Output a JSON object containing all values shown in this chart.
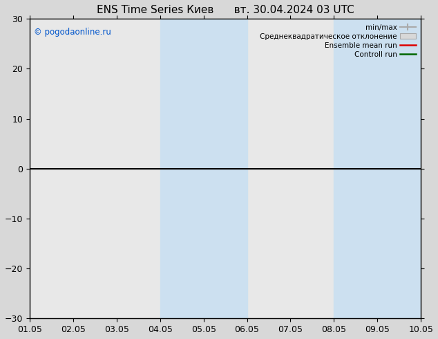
{
  "title": "ENS Time Series Киев",
  "title2": "вт. 30.04.2024 03 UTC",
  "ylim": [
    -30,
    30
  ],
  "yticks": [
    -30,
    -20,
    -10,
    0,
    10,
    20,
    30
  ],
  "xtick_labels": [
    "01.05",
    "02.05",
    "03.05",
    "04.05",
    "05.05",
    "06.05",
    "07.05",
    "08.05",
    "09.05",
    "10.05"
  ],
  "background_color": "#d8d8d8",
  "plot_bg_color": "#e8e8e8",
  "shaded_regions": [
    {
      "xstart": 3,
      "xend": 4,
      "color": "#cce0f0"
    },
    {
      "xstart": 4,
      "xend": 5,
      "color": "#cce0f0"
    },
    {
      "xstart": 7,
      "xend": 8,
      "color": "#cce0f0"
    },
    {
      "xstart": 8,
      "xend": 9,
      "color": "#cce0f0"
    }
  ],
  "zero_line_y": 0,
  "watermark": "© pogodaonline.ru",
  "watermark_color": "#0055cc",
  "legend_labels": [
    "min/max",
    "Среднеквадратическое отклонение",
    "Ensemble mean run",
    "Controll run"
  ],
  "legend_line_colors": [
    "#aaaaaa",
    "#cccccc",
    "#dd0000",
    "#006600"
  ],
  "fig_width": 6.34,
  "fig_height": 4.9,
  "dpi": 100,
  "title_fontsize": 11,
  "tick_fontsize": 9
}
